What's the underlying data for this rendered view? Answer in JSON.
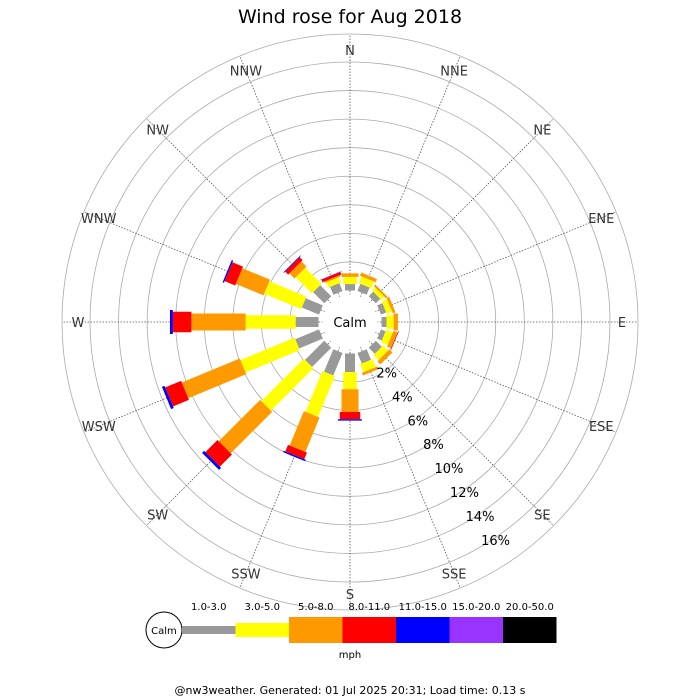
{
  "title": "Wind rose for Aug 2018",
  "footer": "@nw3weather. Generated: 01 Jul 2025 20:31; Load time: 0.13 s",
  "chart_data": {
    "type": "windrose",
    "title": "Wind rose for Aug 2018",
    "directions": [
      "N",
      "NNE",
      "NE",
      "ENE",
      "E",
      "ESE",
      "SE",
      "SSE",
      "S",
      "SSW",
      "SW",
      "WSW",
      "W",
      "WNW",
      "NW",
      "NNW"
    ],
    "radial_ticks": [
      "2%",
      "4%",
      "6%",
      "8%",
      "10%",
      "12%",
      "14%",
      "16%"
    ],
    "radial_max": 16,
    "center_label": "Calm",
    "calm_legend_label": "Calm",
    "units_label": "mph",
    "speed_bins": [
      {
        "label": "1.0-3.0",
        "color": "#999999"
      },
      {
        "label": "3.0-5.0",
        "color": "#ffff00"
      },
      {
        "label": "5.0-8.0",
        "color": "#ff9900"
      },
      {
        "label": "8.0-11.0",
        "color": "#ff0000"
      },
      {
        "label": "11.0-15.0",
        "color": "#0000ff"
      },
      {
        "label": "15.0-20.0",
        "color": "#9933ff"
      },
      {
        "label": "20.0-50.0",
        "color": "#000000"
      }
    ],
    "calm_radius_percent": 1.2,
    "frequencies": [
      [
        0.45,
        0.5,
        0.25,
        0,
        0,
        0,
        0
      ],
      [
        0.55,
        0.5,
        0.25,
        0,
        0,
        0,
        0
      ],
      [
        0.45,
        0.3,
        0.15,
        0,
        0,
        0,
        0
      ],
      [
        0.4,
        0.4,
        0.2,
        0,
        0,
        0,
        0
      ],
      [
        0.35,
        0.5,
        0.3,
        0,
        0,
        0,
        0
      ],
      [
        0.35,
        0.5,
        0.3,
        0.05,
        0,
        0,
        0
      ],
      [
        0.6,
        0.5,
        0.3,
        0,
        0,
        0,
        0
      ],
      [
        0.8,
        0.6,
        0.2,
        0,
        0,
        0,
        0
      ],
      [
        1.3,
        1.2,
        1.6,
        0.5,
        0.1,
        0,
        0
      ],
      [
        1.7,
        3.1,
        2.6,
        0.5,
        0.1,
        0,
        0
      ],
      [
        1.9,
        4.2,
        4.1,
        1.2,
        0.2,
        0,
        0
      ],
      [
        1.8,
        4.1,
        4.4,
        1.2,
        0.2,
        0,
        0
      ],
      [
        1.6,
        3.5,
        3.8,
        1.3,
        0.2,
        0,
        0
      ],
      [
        1.3,
        2.8,
        2.1,
        0.8,
        0.1,
        0,
        0
      ],
      [
        1.1,
        1.6,
        0.5,
        0.3,
        0.05,
        0,
        0
      ],
      [
        0.6,
        0.4,
        0.1,
        0.2,
        0.02,
        0,
        0
      ]
    ]
  }
}
